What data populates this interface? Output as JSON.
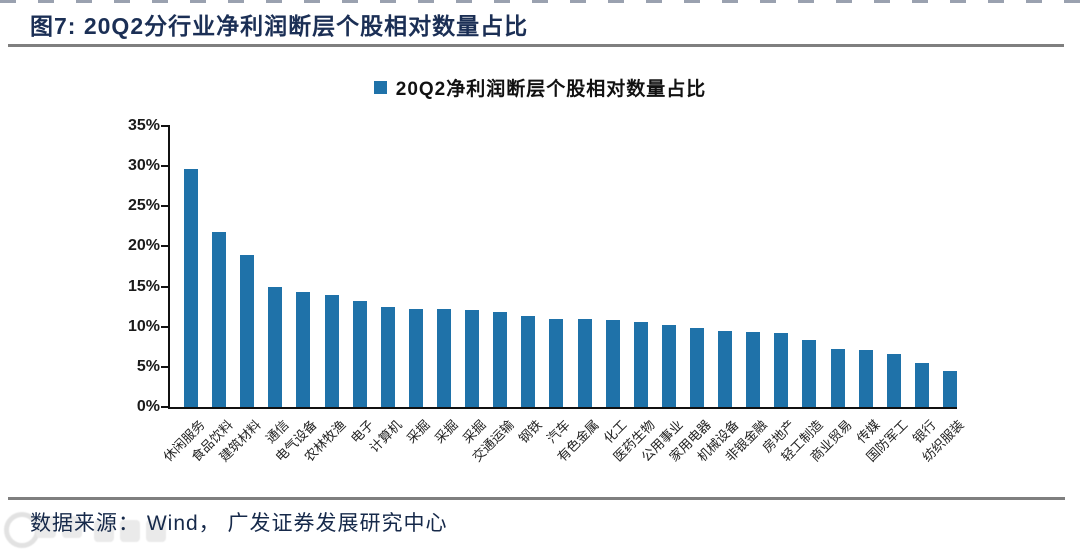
{
  "figure": {
    "title": "图7:  20Q2分行业净利润断层个股相对数量占比",
    "source_label": "数据来源：  Wind，  广发证券发展研究中心"
  },
  "chart_data": {
    "type": "bar",
    "title": "",
    "legend": [
      "20Q2净利润断层个股相对数量占比"
    ],
    "legend_position": "top-center",
    "categories": [
      "休闲服务",
      "食品饮料",
      "建筑材料",
      "通信",
      "电气设备",
      "农林牧渔",
      "电子",
      "计算机",
      "采掘",
      "采掘",
      "采掘",
      "交通运输",
      "钢铁",
      "汽车",
      "有色金属",
      "化工",
      "医药生物",
      "公用事业",
      "家用电器",
      "机械设备",
      "非银金融",
      "房地产",
      "轻工制造",
      "商业贸易",
      "传媒",
      "国防军工",
      "银行",
      "纺织服装"
    ],
    "values": [
      29.6,
      21.8,
      18.9,
      14.9,
      14.3,
      14.0,
      13.2,
      12.4,
      12.2,
      12.2,
      12.1,
      11.8,
      11.3,
      11.0,
      11.0,
      10.8,
      10.6,
      10.2,
      9.8,
      9.5,
      9.4,
      9.2,
      8.4,
      7.2,
      7.1,
      6.6,
      5.5,
      4.5
    ],
    "xlabel": "",
    "ylabel": "",
    "ylim": [
      0,
      35
    ],
    "ytick_step": 5,
    "ytick_labels_top_down": [
      "35%",
      "30%",
      "25%",
      "20%",
      "15%",
      "10%",
      "5%",
      "0%"
    ],
    "grid": false,
    "bar_color": "#1f72a9"
  },
  "colors": {
    "title_navy": "#1b2f55",
    "bar_blue": "#1f72a9",
    "rule_gray": "#7f7f7f",
    "axis_black": "#111111",
    "source_text": "#16294a"
  }
}
